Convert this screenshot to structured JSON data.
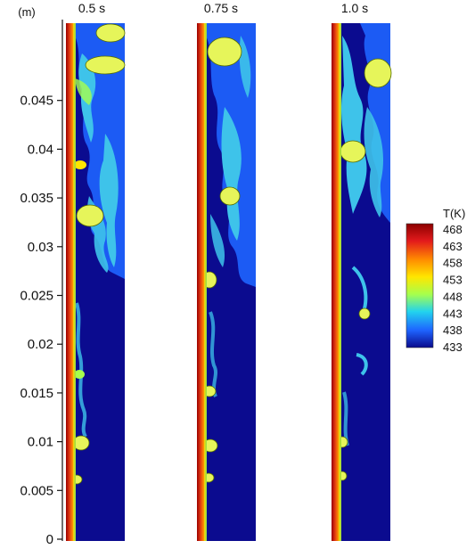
{
  "axis": {
    "unit_label": "(m)",
    "ticks": [
      "0",
      "0.005",
      "0.01",
      "0.015",
      "0.02",
      "0.025",
      "0.03",
      "0.035",
      "0.04",
      "0.045"
    ]
  },
  "panels": [
    {
      "time_label": "0.5 s"
    },
    {
      "time_label": "0.75 s"
    },
    {
      "time_label": "1.0 s"
    }
  ],
  "colorbar": {
    "title": "T(K)",
    "ticks": [
      "468",
      "463",
      "458",
      "453",
      "448",
      "443",
      "438",
      "433"
    ],
    "colors": [
      "#8b0000",
      "#e31a1c",
      "#ff8c00",
      "#ffe600",
      "#a6ff4d",
      "#22d3ee",
      "#1e64ff",
      "#0a0a8c"
    ]
  },
  "colors": {
    "background_fluid": "#0b0b8f",
    "heated_wall": "#d62a10",
    "hot_bubble": "#e6f55a",
    "warm_plume": "#3ec3ea"
  }
}
